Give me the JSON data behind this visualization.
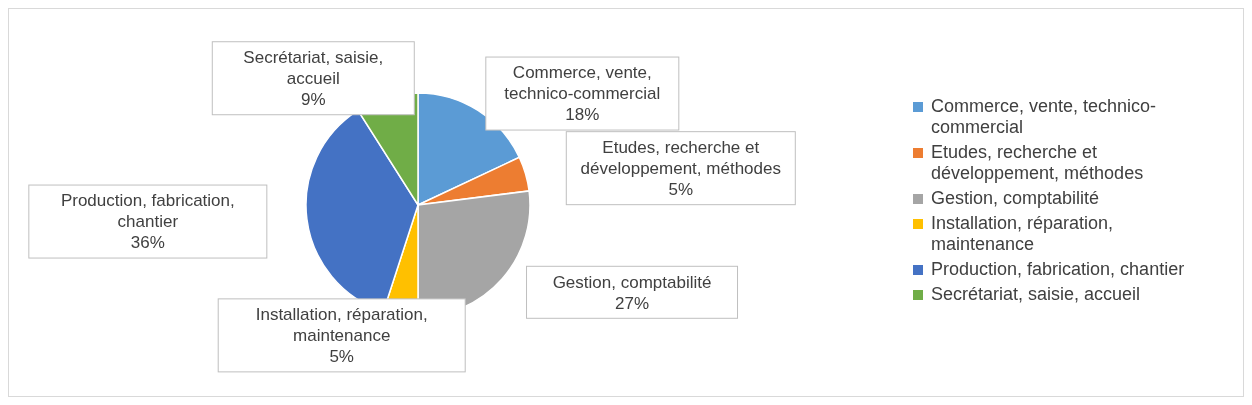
{
  "chart_data": {
    "type": "pie",
    "categories": [
      "Commerce, vente, technico-commercial",
      "Etudes, recherche et développement, méthodes",
      "Gestion, comptabilité",
      "Installation, réparation, maintenance",
      "Production, fabrication, chantier",
      "Secrétariat, saisie, accueil"
    ],
    "values": [
      18,
      5,
      27,
      5,
      36,
      9
    ],
    "colors": [
      "#5b9bd5",
      "#ed7d31",
      "#a5a5a5",
      "#ffc000",
      "#4472c4",
      "#70ad47"
    ],
    "value_labels": [
      "18%",
      "5%",
      "27%",
      "5%",
      "36%",
      "9%"
    ],
    "legend": "right"
  }
}
